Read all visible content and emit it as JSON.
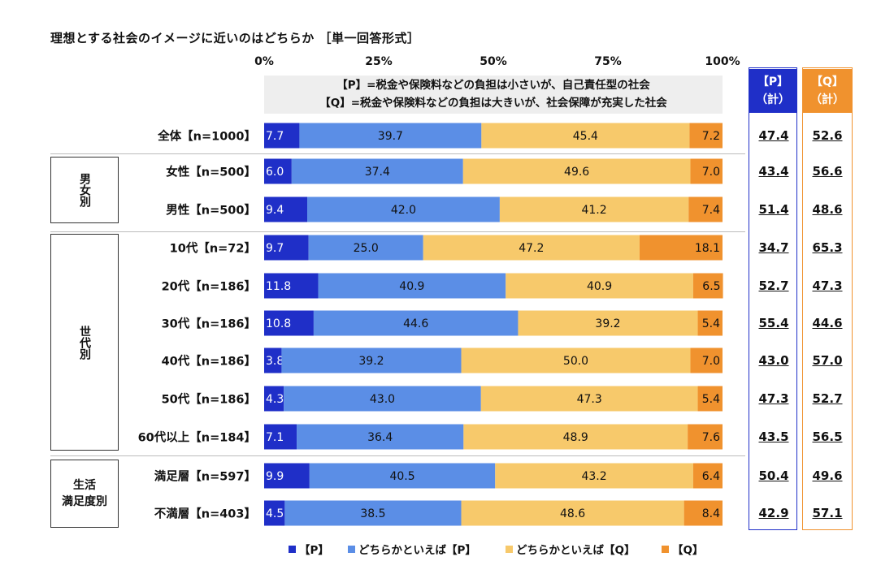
{
  "title": "理想とする社会のイメージに近いのはどちらか ［単一回答形式］",
  "definitions": [
    "【P】=税金や保険料などの負担は小さいが、自己責任型の社会",
    "【Q】=税金や保険料などの負担は大きいが、社会保障が充実した社会"
  ],
  "columns": {
    "p_total": [
      "【P】",
      "（計）"
    ],
    "q_total": [
      "【Q】",
      "（計）"
    ]
  },
  "groups": {
    "gender": "男女別",
    "age": "世代別",
    "life_line1": "生活",
    "life_line2": "満足度別"
  },
  "colors": {
    "P": "#1f2fc8",
    "leanP": "#5b8ee6",
    "leanQ": "#f7c96b",
    "Q": "#f0922e"
  },
  "chart_data": {
    "type": "bar",
    "orientation": "horizontal",
    "stacked": true,
    "xlim": [
      0,
      100
    ],
    "x_ticks": [
      "0%",
      "25%",
      "50%",
      "75%",
      "100%"
    ],
    "series": [
      {
        "name": "【P】",
        "color": "#1f2fc8"
      },
      {
        "name": "どちらかといえば【P】",
        "color": "#5b8ee6"
      },
      {
        "name": "どちらかといえば【Q】",
        "color": "#f7c96b"
      },
      {
        "name": "【Q】",
        "color": "#f0922e"
      }
    ],
    "categories": [
      {
        "label": "全体【n=1000】",
        "values": [
          7.7,
          39.7,
          45.4,
          7.2
        ],
        "p_total": "47.4",
        "q_total": "52.6"
      },
      {
        "label": "女性【n=500】",
        "values": [
          6.0,
          37.4,
          49.6,
          7.0
        ],
        "p_total": "43.4",
        "q_total": "56.6"
      },
      {
        "label": "男性【n=500】",
        "values": [
          9.4,
          42.0,
          41.2,
          7.4
        ],
        "p_total": "51.4",
        "q_total": "48.6"
      },
      {
        "label": "10代【n=72】",
        "values": [
          9.7,
          25.0,
          47.2,
          18.1
        ],
        "p_total": "34.7",
        "q_total": "65.3"
      },
      {
        "label": "20代【n=186】",
        "values": [
          11.8,
          40.9,
          40.9,
          6.5
        ],
        "p_total": "52.7",
        "q_total": "47.3"
      },
      {
        "label": "30代【n=186】",
        "values": [
          10.8,
          44.6,
          39.2,
          5.4
        ],
        "p_total": "55.4",
        "q_total": "44.6"
      },
      {
        "label": "40代【n=186】",
        "values": [
          3.8,
          39.2,
          50.0,
          7.0
        ],
        "p_total": "43.0",
        "q_total": "57.0"
      },
      {
        "label": "50代【n=186】",
        "values": [
          4.3,
          43.0,
          47.3,
          5.4
        ],
        "p_total": "47.3",
        "q_total": "52.7"
      },
      {
        "label": "60代以上【n=184】",
        "values": [
          7.1,
          36.4,
          48.9,
          7.6
        ],
        "p_total": "43.5",
        "q_total": "56.5"
      },
      {
        "label": "満足層【n=597】",
        "values": [
          9.9,
          40.5,
          43.2,
          6.4
        ],
        "p_total": "50.4",
        "q_total": "49.6"
      },
      {
        "label": "不満層【n=403】",
        "values": [
          4.5,
          38.5,
          48.6,
          8.4
        ],
        "p_total": "42.9",
        "q_total": "57.1"
      }
    ]
  }
}
